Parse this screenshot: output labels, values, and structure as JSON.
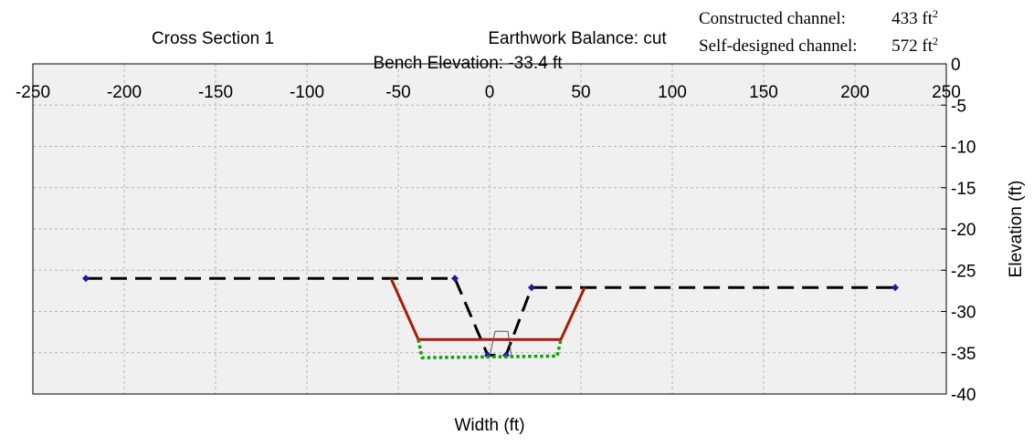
{
  "chart_data": {
    "type": "line",
    "title": "Cross Section 1",
    "balance_text": "Earthwork Balance: cut",
    "bench_text": "Bench Elevation: -33.4 ft",
    "areas": [
      {
        "label": "Constructed channel:",
        "value": "433 ft",
        "sup": "2"
      },
      {
        "label": "Self-designed channel:",
        "value": "572 ft",
        "sup": "2"
      }
    ],
    "xlabel": "Width (ft)",
    "ylabel": "Elevation (ft)",
    "xlim": [
      -250,
      250
    ],
    "ylim": [
      -40,
      0
    ],
    "xticks": [
      -250,
      -200,
      -150,
      -100,
      -50,
      0,
      50,
      100,
      150,
      200,
      250
    ],
    "yticks": [
      0,
      -5,
      -10,
      -15,
      -20,
      -25,
      -30,
      -35,
      -40
    ],
    "grid": true,
    "series": [
      {
        "color": "#000000",
        "style": "dashed",
        "markers": true,
        "marker_color": "#1a1aa6",
        "x": [
          -221,
          -19,
          -1,
          9,
          23,
          222
        ],
        "y": [
          -26,
          -26,
          -35.3,
          -35.3,
          -27.1,
          -27.1
        ]
      },
      {
        "color": "#a31f0b",
        "style": "solid",
        "markers": false,
        "x": [
          -54,
          -39,
          39,
          52
        ],
        "y": [
          -26,
          -33.4,
          -33.4,
          -27.1
        ]
      },
      {
        "color": "#10a010",
        "style": "dotted",
        "markers": false,
        "x": [
          -39,
          -37,
          37,
          39
        ],
        "y": [
          -33.4,
          -35.6,
          -35.4,
          -33.4
        ]
      },
      {
        "color": "#555555",
        "style": "thin",
        "markers": false,
        "x": [
          0,
          3,
          10,
          12
        ],
        "y": [
          -35.5,
          -32.4,
          -32.4,
          -35.5
        ]
      }
    ]
  }
}
